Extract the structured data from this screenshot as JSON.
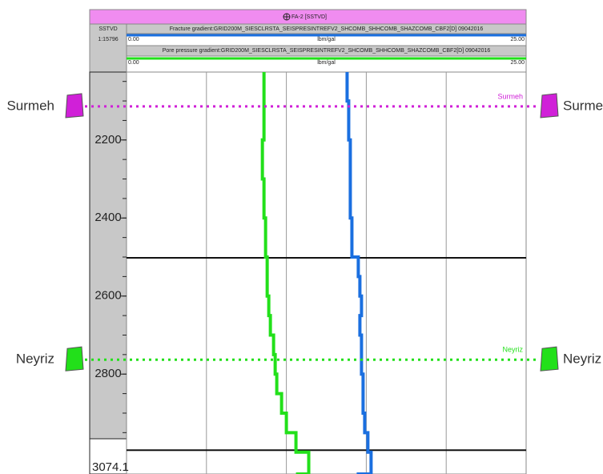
{
  "chart_data": {
    "type": "well-log",
    "title": "FA-2 [SSTVD]",
    "depth_axis_label": "SSTVD",
    "scale_ratio": "1:15796",
    "depth_label_bottom": "3074.1",
    "unit": "lbm/gal",
    "scale_min": {
      "value": 0,
      "label": "0.00"
    },
    "scale_max": {
      "value": 25,
      "label": "25.00"
    },
    "xlim": [
      0,
      25
    ],
    "xticks": [
      5,
      10,
      15,
      20
    ],
    "ylim": [
      2026,
      3056
    ],
    "yticks": [
      2200,
      2400,
      2600,
      2800
    ],
    "horizontal_lines": [
      2502,
      2995
    ],
    "depth": [
      2026,
      2100,
      2200,
      2300,
      2400,
      2500,
      2550,
      2600,
      2650,
      2700,
      2750,
      2800,
      2850,
      2900,
      2950,
      3000,
      3056
    ],
    "series": [
      {
        "name": "Fracture gradient:GRID200M_SIESCLRSTA_SEISPRESINTREFV2_SHCOMB_SHHCOMB_SHAZCOMB_CBF2[D] 09042016",
        "color": "#1a6fe0",
        "values": [
          13.8,
          13.9,
          14.0,
          14.0,
          14.1,
          14.5,
          14.6,
          14.7,
          14.6,
          14.7,
          14.7,
          14.8,
          14.8,
          14.9,
          15.1,
          15.3,
          14.4
        ]
      },
      {
        "name": "Pore pressure gradient:GRID200M_SIESCLRSTA_SEISPRESINTREFV2_SHCOMB_SHHCOMB_SHAZCOMB_CBF2[D] 09042016",
        "color": "#22e01a",
        "values": [
          8.6,
          8.6,
          8.5,
          8.6,
          8.7,
          8.8,
          8.8,
          8.9,
          9.0,
          9.2,
          9.3,
          9.4,
          9.7,
          10.0,
          10.6,
          11.4,
          10.6
        ]
      }
    ],
    "formation_tops": [
      {
        "name": "Surmeh",
        "depth": 2114,
        "color": "#d020d8"
      },
      {
        "name": "Neyriz",
        "depth": 2763,
        "color": "#22e01a"
      }
    ]
  }
}
